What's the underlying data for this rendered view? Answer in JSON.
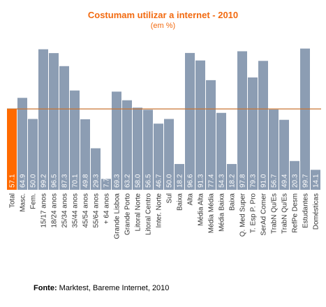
{
  "chart_data": {
    "type": "bar",
    "title": "Costumam utilizar a internet  - 2010",
    "subtitle": "(em %)",
    "xlabel": "",
    "ylabel": "",
    "ylim": [
      0,
      100
    ],
    "grid": false,
    "legend": "none",
    "reference_line": 57.1,
    "categories": [
      "Total",
      "Masc.",
      "Fem.",
      "15/17 anos",
      "18/24 anos",
      "25/34 anos",
      "35/44 anos",
      "45/54 anos",
      "55/64 anos",
      "+ 64 anos",
      "Grande Lisboa",
      "Grande Porto",
      "Litoral Norte",
      "Litoral Centro",
      "Inter. Norte",
      "Sul",
      "Baixa",
      "Alta",
      "Média Alta",
      "Média Média",
      "Média Baixa",
      "Baixa",
      "Q. Med Super",
      "T. Esp P. Pro",
      "SerAd Comer",
      "TrabN Qu/Es",
      "TrabN Qu/Es",
      "RefPe Desm",
      "Estudantes",
      "Domésticas"
    ],
    "values": [
      57.1,
      64.9,
      50.0,
      99.2,
      96.5,
      87.3,
      70.1,
      49.8,
      29.3,
      7.7,
      69.3,
      63.2,
      58.0,
      56.5,
      46.7,
      50.0,
      18.2,
      96.6,
      91.3,
      77.4,
      54.3,
      18.2,
      97.8,
      79.3,
      91.0,
      56.7,
      49.4,
      20.3,
      99.7,
      14.1
    ],
    "labels": [
      "57.1",
      "64.9",
      "50.0",
      "99.2",
      "96.5",
      "87.3",
      "70.1",
      "49.8",
      "29.3",
      "7.7",
      "69.3",
      "63.2",
      "58.0",
      "56.5",
      "46.7",
      "50.0",
      "18.2",
      "96.6",
      "91.3",
      "77.4",
      "54.3",
      "18.2",
      "97.8",
      "79.3",
      "91.0",
      "56.7",
      "49.4",
      "20.3",
      "99.7",
      "14.1"
    ],
    "highlight_index": 0,
    "colors": {
      "bar": "#8c9db3",
      "highlight": "#ff6a00",
      "reference_line": "#c87533",
      "value_label": "#ffffff",
      "category_label": "#333333"
    }
  },
  "footer": {
    "source_label": "Fonte:",
    "source_text": " Marktest, Bareme Internet, 2010"
  }
}
